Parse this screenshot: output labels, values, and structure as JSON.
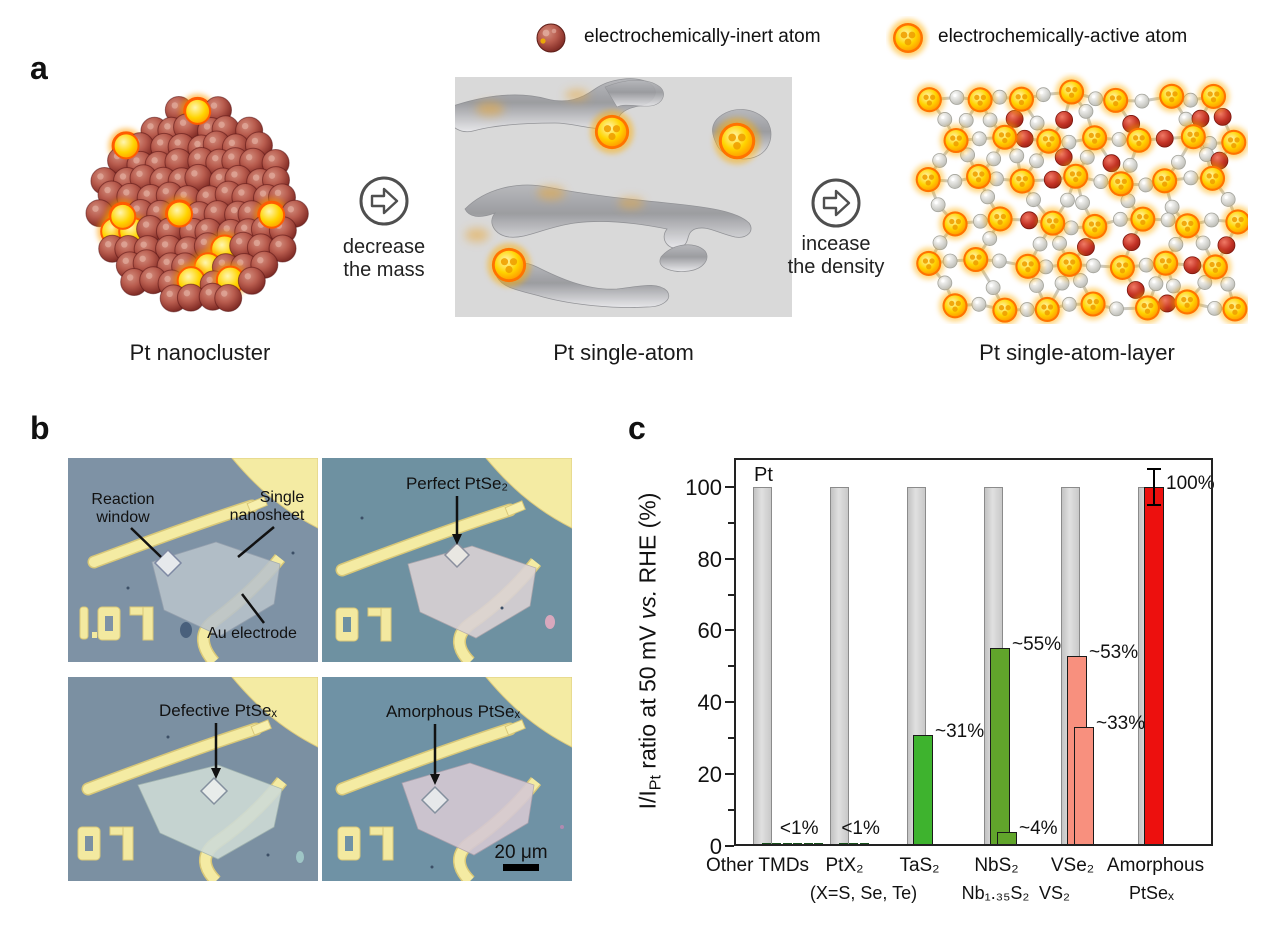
{
  "legend": {
    "inert_label": "electrochemically-inert atom",
    "active_label": "electrochemically-active atom"
  },
  "panel_a": {
    "label": "a",
    "captions": {
      "nanocluster": "Pt nanocluster",
      "single_atom": "Pt single-atom",
      "single_atom_layer": "Pt single-atom-layer"
    },
    "arrow1": {
      "line1": "decrease",
      "line2": "the mass"
    },
    "arrow2": {
      "line1": "incease",
      "line2": "the density"
    }
  },
  "panel_b": {
    "label": "b",
    "image1": {
      "annotation1_line1": "Reaction",
      "annotation1_line2": "window",
      "annotation2_line1": "Single",
      "annotation2_line2": "nanosheet",
      "annotation3": "Au electrode",
      "chip_id": "07"
    },
    "image2": {
      "annotation": "Perfect PtSe₂",
      "chip_id": "07"
    },
    "image3": {
      "annotation": "Defective PtSeₓ",
      "chip_id": "07"
    },
    "image4": {
      "annotation": "Amorphous PtSeₓ",
      "chip_id": "07",
      "scale_bar": "20 μm"
    }
  },
  "panel_c": {
    "label": "c"
  },
  "chart_data": {
    "type": "bar",
    "title": "",
    "ylabel": "I/I_Pt ratio at 50 mV vs. RHE (%)",
    "ylabel_parts": {
      "pre": "I/I",
      "sub": "Pt",
      "mid": " ratio at 50 mV ",
      "italic": "vs.",
      "post": " RHE (%)"
    },
    "ylim": [
      0,
      108
    ],
    "yticks": [
      0,
      20,
      40,
      60,
      80,
      100
    ],
    "yticks_minor": [
      10,
      30,
      50,
      70,
      90
    ],
    "grid": false,
    "legend_position": "none",
    "reference": {
      "label": "Pt",
      "value": 100
    },
    "groups": [
      {
        "name": "Other TMDs",
        "tiny_values": [
          0.9,
          0.9,
          0.9,
          0.9,
          0.9,
          0.9
        ],
        "tiny_label": "<1%",
        "color": "green"
      },
      {
        "name": "PtX₂",
        "name2": "(X=S, Se, Te)",
        "tiny_values": [
          0.9,
          0.9,
          0.9
        ],
        "tiny_label": "<1%",
        "color": "green"
      },
      {
        "name": "TaS₂",
        "bars": [
          {
            "value": 31,
            "label": "~31%",
            "color": "green"
          }
        ]
      },
      {
        "name": "NbS₂",
        "name2": "Nb₁.₃₅S₂",
        "bars": [
          {
            "value": 55,
            "label": "~55%",
            "color": "olive"
          },
          {
            "value": 4,
            "label": "~4%",
            "color": "olive"
          }
        ]
      },
      {
        "name": "VSe₂",
        "name2": "VS₂",
        "bars": [
          {
            "value": 53,
            "label": "~53%",
            "color": "salmon"
          },
          {
            "value": 33,
            "label": "~33%",
            "color": "salmon"
          }
        ]
      },
      {
        "name": "Amorphous",
        "name2": "PtSeₓ",
        "bars": [
          {
            "value": 100,
            "label": "100%",
            "color": "red",
            "error": 5
          }
        ]
      }
    ],
    "colors": {
      "gray": "#d2d2d2",
      "green": "#3eb32e",
      "green_light": "#8ec63f",
      "olive": "#61a52b",
      "salmon": "#f8907e",
      "red": "#ed100e"
    }
  }
}
